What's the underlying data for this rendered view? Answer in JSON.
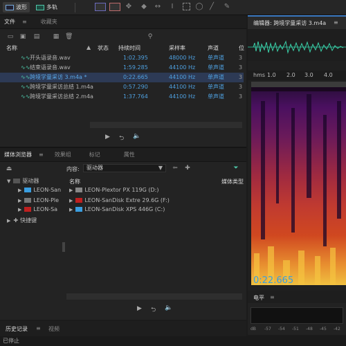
{
  "toolbar": {
    "mode_waveform": "波形",
    "mode_multitrack": "多轨"
  },
  "files_panel": {
    "tab_files": "文件",
    "tab_favorites": "收藏夹",
    "columns": {
      "name": "名称",
      "status": "状态",
      "duration": "持续时间",
      "sample_rate": "采样率",
      "channels": "声道",
      "extra": "位"
    },
    "rows": [
      {
        "name": "开头语录音.wav",
        "duration": "1:02.395",
        "sample_rate": "48000 Hz",
        "channels": "单声道",
        "extra": "3"
      },
      {
        "name": "结束语录音.wav",
        "duration": "1:59.285",
        "sample_rate": "44100 Hz",
        "channels": "单声道",
        "extra": "3"
      },
      {
        "name": "跨境学童采访 3.m4a *",
        "duration": "0:22.665",
        "sample_rate": "44100 Hz",
        "channels": "单声道",
        "extra": "3"
      },
      {
        "name": "跨境学童采访总结 1.m4a",
        "duration": "0:57.290",
        "sample_rate": "44100 Hz",
        "channels": "单声道",
        "extra": "3"
      },
      {
        "name": "跨境学童采访总结 2.m4a",
        "duration": "1:37.764",
        "sample_rate": "44100 Hz",
        "channels": "单声道",
        "extra": "3"
      }
    ]
  },
  "media_panel": {
    "tab_media": "媒体浏览器",
    "tab_effects": "效果组",
    "tab_markers": "标记",
    "tab_properties": "属性",
    "content_label": "内容:",
    "content_value": "驱动器",
    "tree": {
      "drives": "驱动器",
      "drive1": "LEON-San",
      "drive2": "LEON-Ple",
      "drive3": "LEON-Sa",
      "shortcuts": "快捷键"
    },
    "col_name": "名称",
    "col_type": "媒体类型",
    "drives": [
      {
        "name": "LEON-Plextor PX 119G (D:)",
        "color": "#888888"
      },
      {
        "name": "LEON-SanDisk Extre 29.6G (F:)",
        "color": "#c02020"
      },
      {
        "name": "LEON-SanDisk XPS 446G (C:)",
        "color": "#3a9ee0"
      }
    ]
  },
  "editor": {
    "title": "编辑器: 跨境学童采访 3.m4a",
    "ruler": [
      "hms",
      "1.0",
      "2.0",
      "3.0",
      "4.0"
    ],
    "timecode": "0:22.665"
  },
  "level": {
    "title": "电平",
    "ticks": [
      "dB",
      "-57",
      "-54",
      "-51",
      "-48",
      "-45",
      "-42"
    ]
  },
  "history": {
    "tab_history": "历史记录",
    "tab_video": "视频"
  },
  "status": {
    "text": "已停止"
  }
}
